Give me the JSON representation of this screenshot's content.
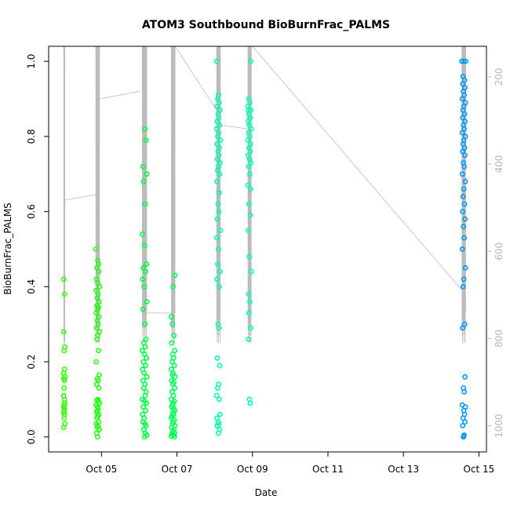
{
  "chart_data": {
    "type": "scatter",
    "title": "ATOM3 Southbound BioBurnFrac_PALMS",
    "xlabel": "Date",
    "ylabel": "BioBurnFrac_PALMS",
    "x_ticks": [
      "Oct 05",
      "Oct 07",
      "Oct 09",
      "Oct 11",
      "Oct 13",
      "Oct 15"
    ],
    "x_tick_values": [
      5,
      7,
      9,
      11,
      13,
      15
    ],
    "xlim": [
      3.6,
      15.2
    ],
    "ylim": [
      -0.04,
      1.04
    ],
    "y_ticks": [
      "0.0",
      "0.2",
      "0.4",
      "0.6",
      "0.8",
      "1.0"
    ],
    "y_tick_values": [
      0,
      0.2,
      0.4,
      0.6,
      0.8,
      1.0
    ],
    "y2_label": "",
    "y2_ticks": [
      "200",
      "400",
      "600",
      "800",
      "1000"
    ],
    "y2_tick_values": [
      200,
      400,
      600,
      800,
      1000
    ],
    "y2lim": [
      1060,
      130
    ],
    "grid": false,
    "marker": "open-circle",
    "colors": {
      "oct04": "#33ff00",
      "oct05": "#22ff10",
      "oct06": "#00ff44",
      "oct07": "#00ff55",
      "oct08": "#00ffaa",
      "oct09": "#00ffbb",
      "oct14": "#0099ff",
      "altitude_trace": "#bbbbbb"
    },
    "series": [
      {
        "color_key": "oct04",
        "x": [
          4.0,
          4.02,
          4.0,
          4.03,
          4.01,
          4.02,
          4.0,
          4.03,
          4.0,
          4.02,
          4.01,
          4.0,
          4.02,
          4.03,
          4.01,
          4.0,
          4.02,
          4.01,
          4.0,
          4.02,
          4.01,
          4.03,
          4.0
        ],
        "y": [
          0.42,
          0.38,
          0.28,
          0.24,
          0.23,
          0.18,
          0.17,
          0.16,
          0.155,
          0.15,
          0.13,
          0.11,
          0.1,
          0.09,
          0.085,
          0.08,
          0.075,
          0.07,
          0.065,
          0.06,
          0.05,
          0.035,
          0.025
        ]
      },
      {
        "color_key": "oct05",
        "x": [
          4.85,
          4.9,
          4.92,
          4.88,
          4.93,
          4.87,
          4.9,
          4.95,
          4.86,
          4.91,
          4.89,
          4.94,
          4.88,
          4.92,
          4.9,
          4.86,
          4.93,
          4.89,
          4.91,
          4.87,
          4.95,
          4.9,
          4.88,
          4.92,
          4.86,
          4.94,
          4.89,
          4.91,
          4.87,
          4.93,
          4.9,
          4.88,
          4.92,
          4.95,
          4.86,
          4.9,
          4.91,
          4.89,
          4.87,
          4.93,
          4.9,
          4.88,
          4.92,
          4.86,
          4.91,
          4.89,
          4.94,
          4.87,
          4.9
        ],
        "y": [
          0.5,
          0.47,
          0.46,
          0.45,
          0.44,
          0.42,
          0.41,
          0.4,
          0.39,
          0.38,
          0.37,
          0.36,
          0.35,
          0.345,
          0.34,
          0.33,
          0.32,
          0.31,
          0.3,
          0.29,
          0.28,
          0.27,
          0.26,
          0.23,
          0.2,
          0.165,
          0.155,
          0.15,
          0.14,
          0.13,
          0.1,
          0.098,
          0.095,
          0.09,
          0.085,
          0.08,
          0.075,
          0.07,
          0.065,
          0.06,
          0.055,
          0.05,
          0.04,
          0.035,
          0.03,
          0.025,
          0.02,
          0.01,
          0.0
        ]
      },
      {
        "color_key": "oct06",
        "x": [
          6.15,
          6.18,
          6.1,
          6.2,
          6.12,
          6.16,
          6.08,
          6.14,
          6.19,
          6.11,
          6.17,
          6.09,
          6.13,
          6.2,
          6.1,
          6.15,
          6.18,
          6.12,
          6.16,
          6.08,
          6.14,
          6.19,
          6.11,
          6.17,
          6.09,
          6.13,
          6.2,
          6.1,
          6.15,
          6.12,
          6.18,
          6.16,
          6.08,
          6.14,
          6.19,
          6.11,
          6.17,
          6.09,
          6.13,
          6.1,
          6.15,
          6.18,
          6.12,
          6.16,
          6.2,
          6.14
        ],
        "y": [
          0.82,
          0.79,
          0.72,
          0.7,
          0.68,
          0.62,
          0.54,
          0.51,
          0.46,
          0.45,
          0.44,
          0.42,
          0.4,
          0.36,
          0.34,
          0.3,
          0.26,
          0.25,
          0.24,
          0.23,
          0.22,
          0.21,
          0.2,
          0.19,
          0.18,
          0.17,
          0.16,
          0.15,
          0.14,
          0.13,
          0.12,
          0.11,
          0.1,
          0.095,
          0.09,
          0.08,
          0.07,
          0.06,
          0.05,
          0.04,
          0.035,
          0.03,
          0.02,
          0.01,
          0.005,
          0.0
        ]
      },
      {
        "color_key": "oct07",
        "x": [
          6.95,
          6.9,
          6.85,
          6.88,
          6.92,
          6.86,
          6.94,
          6.89,
          6.91,
          6.87,
          6.93,
          6.85,
          6.9,
          6.88,
          6.95,
          6.86,
          6.92,
          6.89,
          6.94,
          6.87,
          6.91,
          6.85,
          6.93,
          6.9,
          6.88,
          6.86,
          6.92,
          6.94,
          6.89,
          6.91,
          6.87,
          6.85,
          6.93,
          6.9,
          6.88,
          6.95,
          6.86,
          6.92,
          6.89,
          6.94,
          6.87,
          6.91,
          6.85,
          6.93
        ],
        "y": [
          0.43,
          0.4,
          0.32,
          0.3,
          0.27,
          0.25,
          0.23,
          0.22,
          0.21,
          0.2,
          0.19,
          0.18,
          0.17,
          0.165,
          0.16,
          0.15,
          0.145,
          0.14,
          0.13,
          0.12,
          0.11,
          0.1,
          0.095,
          0.09,
          0.085,
          0.08,
          0.075,
          0.07,
          0.065,
          0.06,
          0.055,
          0.05,
          0.045,
          0.04,
          0.035,
          0.03,
          0.025,
          0.02,
          0.015,
          0.01,
          0.008,
          0.005,
          0.002,
          0.0
        ]
      },
      {
        "color_key": "oct08",
        "x": [
          8.05,
          8.1,
          8.08,
          8.12,
          8.06,
          8.14,
          8.09,
          8.11,
          8.07,
          8.13,
          8.05,
          8.1,
          8.08,
          8.15,
          8.06,
          8.12,
          8.09,
          8.11,
          8.07,
          8.14,
          8.1,
          8.08,
          8.13,
          8.06,
          8.12,
          8.09,
          8.11,
          8.07,
          8.15,
          8.05,
          8.1,
          8.08,
          8.14,
          8.06,
          8.12,
          8.09,
          8.11,
          8.07,
          8.13,
          8.1,
          8.08,
          8.05,
          8.12,
          8.14,
          8.06,
          8.09,
          8.11,
          8.07,
          8.13,
          8.1
        ],
        "y": [
          1.0,
          0.91,
          0.9,
          0.89,
          0.88,
          0.87,
          0.86,
          0.85,
          0.84,
          0.83,
          0.82,
          0.81,
          0.8,
          0.79,
          0.78,
          0.77,
          0.76,
          0.75,
          0.74,
          0.73,
          0.72,
          0.71,
          0.7,
          0.68,
          0.65,
          0.62,
          0.6,
          0.58,
          0.55,
          0.53,
          0.5,
          0.46,
          0.44,
          0.42,
          0.4,
          0.3,
          0.29,
          0.21,
          0.19,
          0.14,
          0.13,
          0.11,
          0.1,
          0.06,
          0.05,
          0.04,
          0.035,
          0.03,
          0.02,
          0.01
        ]
      },
      {
        "color_key": "oct09",
        "x": [
          8.95,
          8.9,
          8.93,
          8.88,
          8.96,
          8.91,
          8.94,
          8.89,
          8.92,
          8.97,
          8.9,
          8.93,
          8.88,
          8.95,
          8.91,
          8.94,
          8.89,
          8.92,
          8.96,
          8.9,
          8.93,
          8.88,
          8.95,
          8.91,
          8.94,
          8.89,
          8.92,
          8.97,
          8.9,
          8.93,
          8.91,
          8.95,
          8.89,
          8.92,
          8.94,
          8.9,
          8.93
        ],
        "y": [
          1.0,
          0.9,
          0.89,
          0.88,
          0.87,
          0.86,
          0.85,
          0.84,
          0.83,
          0.82,
          0.81,
          0.8,
          0.79,
          0.78,
          0.77,
          0.76,
          0.75,
          0.74,
          0.73,
          0.72,
          0.7,
          0.67,
          0.66,
          0.62,
          0.59,
          0.55,
          0.48,
          0.44,
          0.38,
          0.36,
          0.33,
          0.29,
          0.26,
          0.1,
          0.09,
          0.87,
          0.85
        ]
      },
      {
        "color_key": "oct14",
        "x": [
          14.55,
          14.6,
          14.65,
          14.58,
          14.62,
          14.57,
          14.63,
          14.59,
          14.61,
          14.56,
          14.64,
          14.6,
          14.58,
          14.62,
          14.57,
          14.63,
          14.59,
          14.61,
          14.56,
          14.64,
          14.6,
          14.58,
          14.62,
          14.57,
          14.63,
          14.59,
          14.61,
          14.56,
          14.64,
          14.6,
          14.58,
          14.62,
          14.57,
          14.63,
          14.59,
          14.61,
          14.56,
          14.64,
          14.6,
          14.58,
          14.62,
          14.57,
          14.63,
          14.59,
          14.61,
          14.56,
          14.64,
          14.6,
          14.62,
          14.58,
          14.63,
          14.57,
          14.61,
          14.59,
          14.6
        ],
        "y": [
          1.0,
          1.0,
          1.0,
          0.96,
          0.95,
          0.94,
          0.93,
          0.92,
          0.91,
          0.9,
          0.89,
          0.88,
          0.87,
          0.86,
          0.85,
          0.84,
          0.83,
          0.82,
          0.81,
          0.8,
          0.79,
          0.78,
          0.77,
          0.76,
          0.75,
          0.73,
          0.72,
          0.7,
          0.68,
          0.66,
          0.64,
          0.62,
          0.6,
          0.58,
          0.56,
          0.53,
          0.5,
          0.45,
          0.42,
          0.4,
          0.3,
          0.29,
          0.16,
          0.13,
          0.12,
          0.085,
          0.08,
          0.07,
          0.06,
          0.05,
          0.04,
          0.03,
          0.005,
          0.0,
          0.003
        ]
      }
    ]
  }
}
